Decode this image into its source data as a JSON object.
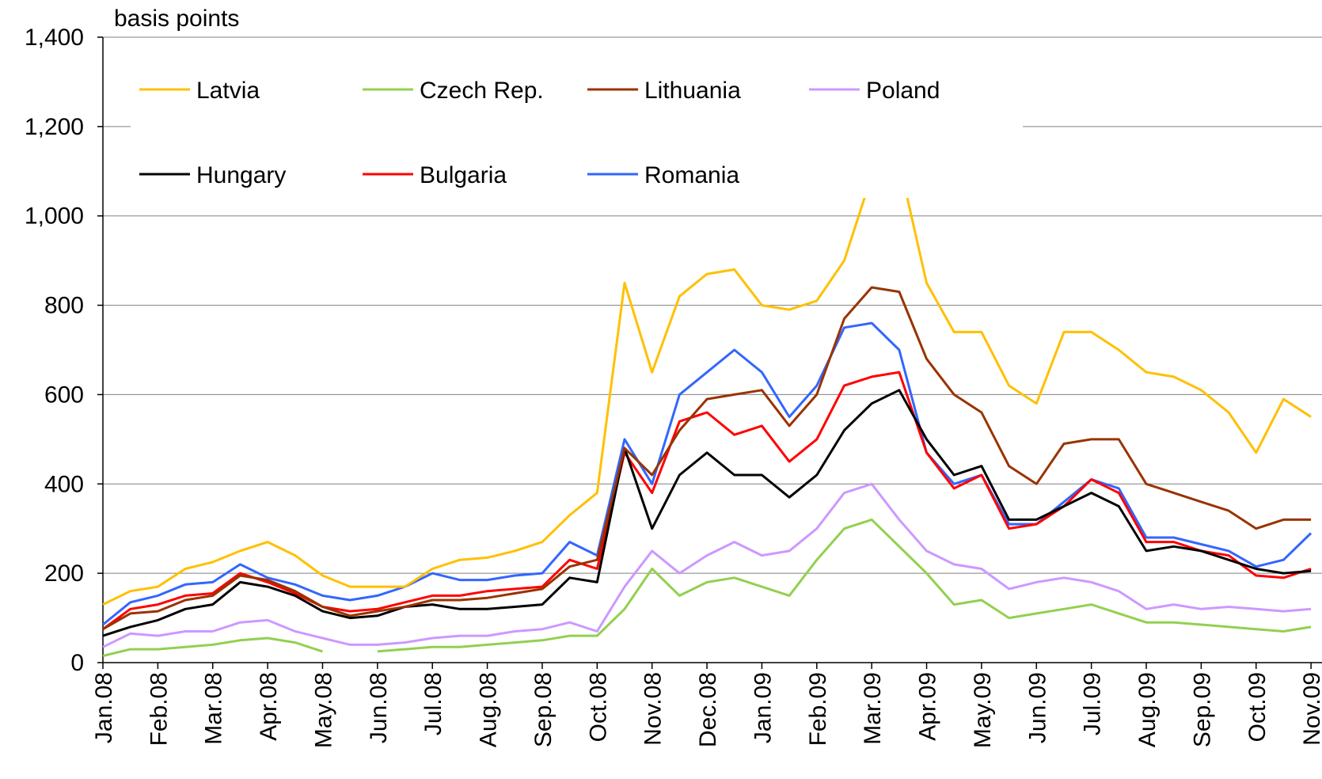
{
  "chart_data": {
    "type": "line",
    "y_label": "basis points",
    "x": [
      0,
      0.5,
      1,
      1.5,
      2,
      2.5,
      3,
      3.5,
      4,
      4.5,
      5,
      5.5,
      6,
      6.5,
      7,
      7.5,
      8,
      8.5,
      9,
      9.5,
      10,
      10.5,
      11,
      11.5,
      12,
      12.5,
      13,
      13.5,
      14,
      14.5,
      15,
      15.5,
      16,
      16.5,
      17,
      17.5,
      18,
      18.5,
      19,
      19.5,
      20,
      20.5,
      21,
      21.5,
      22
    ],
    "xlim": [
      0,
      22.2
    ],
    "xticks": [
      {
        "value": 0,
        "label": "Jan.08"
      },
      {
        "value": 1,
        "label": "Feb.08"
      },
      {
        "value": 2,
        "label": "Mar.08"
      },
      {
        "value": 3,
        "label": "Apr.08"
      },
      {
        "value": 4,
        "label": "May.08"
      },
      {
        "value": 5,
        "label": "Jun.08"
      },
      {
        "value": 6,
        "label": "Jul.08"
      },
      {
        "value": 7,
        "label": "Aug.08"
      },
      {
        "value": 8,
        "label": "Sep.08"
      },
      {
        "value": 9,
        "label": "Oct.08"
      },
      {
        "value": 10,
        "label": "Nov.08"
      },
      {
        "value": 11,
        "label": "Dec.08"
      },
      {
        "value": 12,
        "label": "Jan.09"
      },
      {
        "value": 13,
        "label": "Feb.09"
      },
      {
        "value": 14,
        "label": "Mar.09"
      },
      {
        "value": 15,
        "label": "Apr.09"
      },
      {
        "value": 16,
        "label": "May.09"
      },
      {
        "value": 17,
        "label": "Jun.09"
      },
      {
        "value": 18,
        "label": "Jul.09"
      },
      {
        "value": 19,
        "label": "Aug.09"
      },
      {
        "value": 20,
        "label": "Sep.09"
      },
      {
        "value": 21,
        "label": "Oct.09"
      },
      {
        "value": 22,
        "label": "Nov.09"
      }
    ],
    "ylim": [
      0,
      1400
    ],
    "yticks": [
      0,
      {
        "value": 200,
        "label": "200"
      },
      400,
      600,
      800,
      {
        "value": 1000,
        "label": "1,000"
      },
      {
        "value": 1200,
        "label": "1,200"
      },
      {
        "value": 1400,
        "label": "1,400"
      }
    ],
    "grid": true,
    "series": [
      {
        "name": "Latvia",
        "color": "#ffc000",
        "values": [
          130,
          160,
          170,
          210,
          225,
          250,
          270,
          240,
          195,
          170,
          170,
          170,
          210,
          230,
          235,
          250,
          270,
          330,
          380,
          850,
          650,
          820,
          870,
          880,
          800,
          790,
          810,
          900,
          1090,
          1120,
          850,
          740,
          740,
          620,
          580,
          740,
          740,
          700,
          650,
          640,
          610,
          560,
          470,
          590,
          550
        ]
      },
      {
        "name": "Czech Rep.",
        "color": "#92d050",
        "values": [
          15,
          30,
          30,
          35,
          40,
          50,
          55,
          45,
          25,
          null,
          25,
          30,
          35,
          35,
          40,
          45,
          50,
          60,
          60,
          120,
          210,
          150,
          180,
          190,
          170,
          150,
          230,
          300,
          320,
          260,
          200,
          130,
          140,
          100,
          110,
          120,
          130,
          110,
          90,
          90,
          85,
          80,
          75,
          70,
          80
        ]
      },
      {
        "name": "Lithuania",
        "color": "#993300",
        "values": [
          75,
          110,
          115,
          140,
          150,
          195,
          185,
          160,
          125,
          105,
          115,
          125,
          140,
          140,
          145,
          155,
          165,
          215,
          230,
          480,
          420,
          520,
          590,
          600,
          610,
          530,
          600,
          770,
          840,
          830,
          680,
          600,
          560,
          440,
          400,
          490,
          500,
          500,
          400,
          380,
          360,
          340,
          300,
          320,
          320
        ]
      },
      {
        "name": "Poland",
        "color": "#cc99ff",
        "values": [
          35,
          65,
          60,
          70,
          70,
          90,
          95,
          70,
          55,
          40,
          40,
          45,
          55,
          60,
          60,
          70,
          75,
          90,
          70,
          170,
          250,
          200,
          240,
          270,
          240,
          250,
          300,
          380,
          400,
          320,
          250,
          220,
          210,
          165,
          180,
          190,
          180,
          160,
          120,
          130,
          120,
          125,
          120,
          115,
          120
        ]
      },
      {
        "name": "Hungary",
        "color": "#000000",
        "values": [
          60,
          80,
          95,
          120,
          130,
          180,
          170,
          150,
          115,
          100,
          105,
          125,
          130,
          120,
          120,
          125,
          130,
          190,
          180,
          480,
          300,
          420,
          470,
          420,
          420,
          370,
          420,
          520,
          580,
          610,
          500,
          420,
          440,
          320,
          320,
          350,
          380,
          350,
          250,
          260,
          250,
          230,
          210,
          200,
          205
        ]
      },
      {
        "name": "Bulgaria",
        "color": "#ff0000",
        "values": [
          75,
          120,
          130,
          150,
          155,
          200,
          180,
          155,
          125,
          115,
          120,
          135,
          150,
          150,
          160,
          165,
          170,
          230,
          210,
          470,
          380,
          540,
          560,
          510,
          530,
          450,
          500,
          620,
          640,
          650,
          470,
          390,
          420,
          300,
          310,
          350,
          410,
          380,
          270,
          270,
          250,
          240,
          195,
          190,
          210
        ]
      },
      {
        "name": "Romania",
        "color": "#3366ff",
        "values": [
          85,
          135,
          150,
          175,
          180,
          220,
          190,
          175,
          150,
          140,
          150,
          170,
          200,
          185,
          185,
          195,
          200,
          270,
          240,
          500,
          400,
          600,
          650,
          700,
          650,
          550,
          620,
          750,
          760,
          700,
          470,
          400,
          420,
          310,
          310,
          360,
          410,
          390,
          280,
          280,
          265,
          250,
          215,
          230,
          290
        ]
      }
    ]
  }
}
